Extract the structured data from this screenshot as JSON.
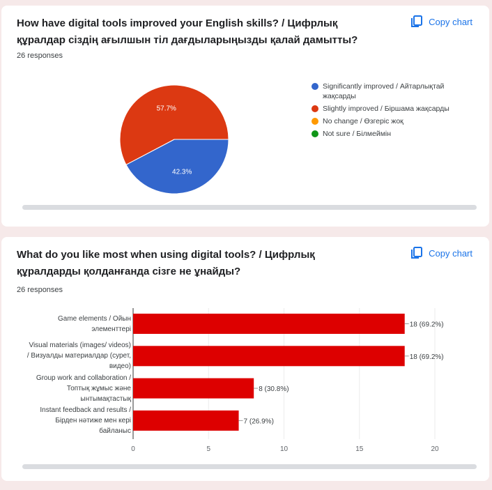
{
  "copy_label": "Copy chart",
  "chart_data": [
    {
      "type": "pie",
      "title": "How have digital tools improved your English skills? / Цифрлық құралдар сіздің ағылшын тіл дағдыларыңызды қалай дамытты?",
      "responses": "26 responses",
      "slices": [
        {
          "label": "Significantly improved / Айтарлықтай жақсарды",
          "value": 42.3,
          "display": "42.3%",
          "color": "#3366cc"
        },
        {
          "label": "Slightly improved / Біршама жақсарды",
          "value": 57.7,
          "display": "57.7%",
          "color": "#dc3912"
        },
        {
          "label": "No change / Өзгеріс жоқ",
          "value": 0,
          "color": "#ff9900"
        },
        {
          "label": "Not sure / Білмеймін",
          "value": 0,
          "color": "#109618"
        }
      ],
      "legend": "right"
    },
    {
      "type": "bar",
      "orientation": "horizontal",
      "title": "What do you like most when using digital tools? / Цифрлық құралдарды қолданғанда сізге не ұнайды?",
      "responses": "26 responses",
      "categories": [
        "Game elements / Ойын элементтері",
        "Visual materials (images/ videos) / Визуалды материалдар (сурет, видео)",
        "Group work and collaboration / Топтық жұмыс және ынтымақтастық",
        "Instant feedback and results / Бірден нәтиже мен кері байланыс"
      ],
      "values": [
        18,
        18,
        8,
        7
      ],
      "labels": [
        "18 (69.2%)",
        "18 (69.2%)",
        "8 (30.8%)",
        "7 (26.9%)"
      ],
      "xlim": [
        0,
        20
      ],
      "xticks": [
        "0",
        "5",
        "10",
        "15",
        "20"
      ],
      "color": "#dd0000"
    }
  ]
}
